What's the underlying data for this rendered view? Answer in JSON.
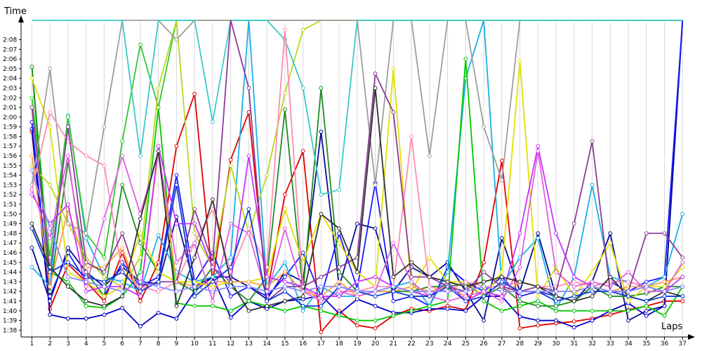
{
  "chart_data": {
    "type": "line",
    "title": "",
    "xlabel": "Laps",
    "ylabel": "Time",
    "grid": true,
    "legend": "none",
    "x": [
      1,
      2,
      3,
      4,
      5,
      6,
      7,
      8,
      9,
      10,
      11,
      12,
      13,
      14,
      15,
      16,
      17,
      18,
      19,
      20,
      21,
      22,
      23,
      24,
      25,
      26,
      27,
      28,
      29,
      30,
      31,
      32,
      33,
      34,
      35,
      36,
      37
    ],
    "x_tick_labels": [
      "1",
      "2",
      "3",
      "4",
      "5",
      "6",
      "7",
      "8",
      "9",
      "10",
      "11",
      "12",
      "13",
      "14",
      "15",
      "16",
      "17",
      "18",
      "19",
      "20",
      "21",
      "22",
      "23",
      "24",
      "25",
      "26",
      "27",
      "28",
      "29",
      "30",
      "31",
      "32",
      "33",
      "34",
      "35",
      "36",
      "37"
    ],
    "y_tick_labels": [
      "1:38",
      "1:39",
      "1:40",
      "1:41",
      "1:42",
      "1:43",
      "1:44",
      "1:45",
      "1:46",
      "1:47",
      "1:48",
      "1:49",
      "1:50",
      "1:51",
      "1:52",
      "1:53",
      "1:54",
      "1:55",
      "1:56",
      "1:57",
      "1:58",
      "1:59",
      "2:00",
      "2:01",
      "2:02",
      "2:03",
      "2:04",
      "2:05",
      "2:06",
      "2:07",
      "2:08"
    ],
    "y_tick_values": [
      98,
      99,
      100,
      101,
      102,
      103,
      104,
      105,
      106,
      107,
      108,
      109,
      110,
      111,
      112,
      113,
      114,
      115,
      116,
      117,
      118,
      119,
      120,
      121,
      122,
      123,
      124,
      125,
      126,
      127,
      128
    ],
    "ylim": [
      97.3,
      130.5
    ],
    "xlim": [
      0.4,
      37.3
    ],
    "series": [
      {
        "color": "#e00000",
        "values": [
          118.5,
          100.2,
          104.8,
          103.0,
          101.0,
          106.0,
          101.0,
          105.0,
          117.0,
          122.4,
          103.0,
          115.6,
          120.5,
          101.7,
          112.0,
          116.5,
          97.8,
          100.0,
          98.5,
          98.2,
          99.5,
          100.2,
          100.0,
          100.5,
          100.1,
          105.0,
          115.5,
          98.2,
          98.5,
          98.7,
          98.9,
          99.2,
          99.6,
          100.1,
          100.5,
          101.0,
          101.0
        ]
      },
      {
        "color": "#0000c8",
        "values": [
          118.8,
          99.6,
          99.2,
          99.2,
          99.6,
          100.3,
          98.4,
          99.8,
          99.2,
          102.0,
          103.5,
          99.3,
          101.0,
          100.2,
          101.0,
          101.2,
          101.6,
          99.7,
          101.2,
          100.5,
          99.8,
          99.8,
          100.2,
          100.2,
          100.0,
          101.5,
          101.5,
          99.4,
          99.0,
          99.0,
          98.3,
          99.0,
          100.0,
          100.8,
          99.5,
          100.5,
          130.0
        ]
      },
      {
        "color": "#0a0a96",
        "values": [
          106.5,
          101.0,
          106.5,
          104.0,
          102.5,
          104.5,
          103.0,
          102.8,
          109.7,
          102.5,
          103.5,
          103.5,
          102.5,
          101.2,
          104.0,
          103.0,
          118.5,
          102.5,
          109.0,
          108.5,
          102.0,
          104.5,
          103.5,
          105.0,
          102.0,
          99.0,
          107.5,
          102.0,
          108.0,
          101.5,
          101.0,
          103.0,
          108.0,
          99.0,
          100.0,
          100.5,
          130.0
        ]
      },
      {
        "color": "#1a1aff",
        "values": [
          119.5,
          101.5,
          106.0,
          103.0,
          101.5,
          105.0,
          102.5,
          103.5,
          114.0,
          103.0,
          106.0,
          101.5,
          102.5,
          101.5,
          103.5,
          106.0,
          101.5,
          108.0,
          102.3,
          113.2,
          101.0,
          101.5,
          100.5,
          104.5,
          103.0,
          102.0,
          103.5,
          101.5,
          102.0,
          101.5,
          101.0,
          102.5,
          103.0,
          102.0,
          103.0,
          103.5,
          130.0
        ]
      },
      {
        "color": "#1ab0e8",
        "values": [
          104.5,
          102.5,
          120.2,
          107.5,
          103.5,
          103.0,
          102.0,
          107.8,
          104.0,
          103.0,
          103.5,
          105.5,
          130.0,
          102.5,
          105.0,
          100.0,
          102.5,
          101.5,
          101.5,
          102.0,
          102.5,
          103.0,
          100.5,
          104.0,
          124.0,
          130.0,
          102.5,
          105.5,
          107.5,
          100.2,
          103.5,
          113.0,
          103.5,
          103.0,
          102.5,
          103.5,
          110.0
        ]
      },
      {
        "color": "#00c800",
        "values": [
          125.2,
          104.0,
          103.0,
          100.5,
          100.3,
          101.5,
          104.0,
          121.0,
          100.8,
          100.5,
          100.5,
          100.0,
          101.0,
          100.5,
          100.0,
          100.5,
          100.0,
          99.5,
          99.0,
          99.0,
          99.5,
          100.0,
          100.5,
          101.0,
          126.0,
          101.0,
          100.0,
          100.5,
          101.0,
          100.0,
          100.0,
          100.0,
          100.0,
          100.0,
          100.5,
          99.5,
          102.5
        ]
      },
      {
        "color": "#30c830",
        "values": [
          122.0,
          105.5,
          120.0,
          108.0,
          105.5,
          117.5,
          127.5,
          121.0,
          130.0,
          130.0,
          130.0,
          130.0,
          130.0,
          130.0,
          130.0,
          130.0,
          130.0,
          130.0,
          130.0,
          130.0,
          130.0,
          130.0,
          130.0,
          130.0,
          130.0,
          130.0,
          130.0,
          130.0,
          130.0,
          130.0,
          130.0,
          130.0,
          130.0,
          130.0,
          130.0,
          130.0,
          130.0
        ]
      },
      {
        "color": "#228b22",
        "values": [
          125.2,
          102.0,
          115.5,
          104.0,
          101.5,
          113.0,
          107.0,
          104.0,
          103.0,
          102.0,
          104.5,
          102.5,
          101.0,
          103.5,
          120.8,
          102.0,
          123.0,
          104.0,
          102.0,
          102.0,
          102.0,
          102.0,
          102.5,
          102.5,
          102.8,
          101.5,
          102.5,
          101.0,
          100.5,
          100.5,
          101.0,
          102.5,
          101.5,
          101.5,
          101.8,
          102.5,
          102.5
        ]
      },
      {
        "color": "#e0e000",
        "values": [
          124.0,
          119.0,
          104.0,
          103.0,
          101.5,
          102.5,
          108.0,
          104.0,
          103.0,
          103.0,
          102.5,
          103.0,
          103.0,
          103.5,
          110.5,
          105.0,
          110.0,
          107.0,
          104.0,
          102.5,
          125.0,
          102.0,
          105.5,
          103.0,
          103.0,
          101.5,
          104.0,
          125.8,
          101.5,
          104.5,
          101.5,
          104.0,
          107.0,
          101.0,
          102.5,
          102.5,
          104.5
        ]
      },
      {
        "color": "#b8d820",
        "values": [
          115.0,
          113.0,
          109.0,
          105.5,
          103.5,
          102.5,
          105.5,
          123.0,
          130.0,
          108.0,
          104.5,
          115.0,
          108.0,
          114.0,
          122.5,
          129.0,
          130.0,
          130.0,
          130.0,
          130.0,
          130.0,
          130.0,
          130.0,
          130.0,
          130.0,
          130.0,
          130.0,
          130.0,
          130.0,
          130.0,
          130.0,
          130.0,
          130.0,
          130.0,
          130.0,
          130.0,
          130.0
        ]
      },
      {
        "color": "#9e9e9e",
        "values": [
          113.0,
          125.0,
          109.0,
          108.0,
          119.0,
          130.0,
          130.0,
          130.0,
          128.0,
          130.0,
          130.0,
          130.0,
          130.0,
          130.0,
          130.0,
          130.0,
          130.0,
          130.0,
          130.0,
          113.0,
          130.0,
          130.0,
          116.0,
          130.0,
          130.0,
          119.0,
          113.5,
          130.0,
          130.0,
          130.0,
          130.0,
          130.0,
          130.0,
          130.0,
          130.0,
          130.0,
          130.0
        ]
      },
      {
        "color": "#3cc8c8",
        "values": [
          130.0,
          130.0,
          130.0,
          130.0,
          130.0,
          130.0,
          116.0,
          130.0,
          130.0,
          130.0,
          119.5,
          130.0,
          130.0,
          130.0,
          128.0,
          123.0,
          112.0,
          112.5,
          130.0,
          130.0,
          130.0,
          130.0,
          130.0,
          130.0,
          130.0,
          130.0,
          130.0,
          130.0,
          130.0,
          130.0,
          130.0,
          130.0,
          130.0,
          130.0,
          130.0,
          130.0,
          130.0
        ]
      },
      {
        "color": "#ff8cb4",
        "values": [
          112.5,
          120.5,
          117.5,
          116.0,
          115.0,
          104.0,
          102.5,
          102.0,
          103.0,
          107.0,
          110.5,
          104.0,
          108.5,
          104.5,
          129.0,
          102.5,
          101.0,
          102.0,
          102.0,
          102.5,
          102.5,
          118.0,
          102.5,
          102.0,
          103.0,
          102.5,
          102.5,
          103.0,
          102.5,
          102.5,
          103.0,
          102.5,
          103.0,
          103.0,
          102.5,
          103.0,
          103.5
        ]
      },
      {
        "color": "#ffa040",
        "values": [
          116.0,
          102.5,
          110.5,
          104.5,
          104.5,
          106.5,
          101.5,
          116.5,
          103.0,
          102.5,
          103.0,
          103.0,
          103.0,
          102.5,
          104.0,
          102.0,
          101.5,
          103.0,
          101.5,
          102.0,
          102.0,
          102.5,
          102.0,
          102.5,
          101.5,
          102.0,
          101.5,
          103.0,
          102.5,
          102.0,
          102.0,
          102.5,
          102.0,
          102.5,
          102.5,
          103.0,
          103.5
        ]
      },
      {
        "color": "#c832ff",
        "values": [
          112.0,
          109.0,
          111.0,
          102.0,
          102.5,
          102.5,
          101.5,
          117.0,
          109.0,
          109.0,
          104.5,
          103.0,
          116.0,
          103.5,
          103.0,
          102.5,
          101.5,
          101.5,
          103.0,
          103.5,
          102.5,
          102.0,
          101.5,
          103.0,
          101.0,
          102.0,
          101.5,
          108.0,
          117.0,
          108.0,
          103.5,
          102.5,
          102.0,
          102.0,
          102.5,
          102.0,
          103.5
        ]
      },
      {
        "color": "#e060e0",
        "values": [
          112.5,
          107.5,
          116.0,
          102.5,
          109.5,
          116.0,
          110.0,
          116.5,
          105.0,
          107.0,
          101.0,
          109.0,
          108.0,
          101.5,
          108.5,
          102.0,
          101.0,
          102.0,
          101.5,
          102.0,
          107.0,
          103.0,
          101.5,
          101.0,
          101.5,
          102.0,
          101.0,
          104.5,
          116.5,
          104.0,
          102.5,
          103.0,
          102.5,
          104.0,
          102.0,
          102.0,
          105.0
        ]
      },
      {
        "color": "#8c3c96",
        "values": [
          121.0,
          104.0,
          119.0,
          105.0,
          104.0,
          108.0,
          102.5,
          103.0,
          103.0,
          110.5,
          105.0,
          130.0,
          123.0,
          101.0,
          102.5,
          102.5,
          103.5,
          104.5,
          105.5,
          124.5,
          120.5,
          103.5,
          103.5,
          102.5,
          102.0,
          104.0,
          102.5,
          102.0,
          102.5,
          102.0,
          109.0,
          117.5,
          102.0,
          102.0,
          108.0,
          108.0,
          105.5
        ]
      },
      {
        "color": "#303030",
        "values": [
          109.0,
          104.5,
          102.5,
          101.0,
          100.5,
          101.5,
          109.5,
          116.5,
          100.5,
          105.5,
          111.5,
          103.0,
          100.0,
          100.5,
          101.0,
          101.5,
          110.0,
          108.5,
          104.0,
          123.0,
          103.5,
          105.0,
          103.5,
          103.0,
          102.5,
          103.0,
          103.5,
          103.0,
          102.5,
          101.5,
          101.0,
          101.5,
          103.5,
          101.5,
          101.0,
          102.0,
          101.5
        ]
      },
      {
        "color": "#0a3cd2",
        "values": [
          108.5,
          104.0,
          105.0,
          103.5,
          103.0,
          104.0,
          102.0,
          103.0,
          113.0,
          101.5,
          103.0,
          104.5,
          110.5,
          101.0,
          102.0,
          100.5,
          100.5,
          102.5,
          102.0,
          101.5,
          102.0,
          101.5,
          101.5,
          102.5,
          101.0,
          101.5,
          103.0,
          102.0,
          102.0,
          101.0,
          101.5,
          102.0,
          102.0,
          101.5,
          101.0,
          101.5,
          101.5
        ]
      },
      {
        "color": "#8a8aff",
        "values": [
          114.5,
          108.5,
          103.5,
          103.0,
          102.5,
          102.0,
          103.0,
          102.5,
          102.0,
          102.5,
          102.0,
          102.5,
          102.5,
          102.0,
          102.5,
          102.0,
          102.5,
          102.5,
          102.0,
          102.0,
          102.5,
          102.0,
          102.0,
          102.0,
          102.0,
          102.5,
          102.0,
          102.0,
          102.0,
          102.0,
          102.0,
          102.5,
          102.0,
          102.0,
          102.5,
          102.0,
          102.5
        ]
      }
    ]
  }
}
